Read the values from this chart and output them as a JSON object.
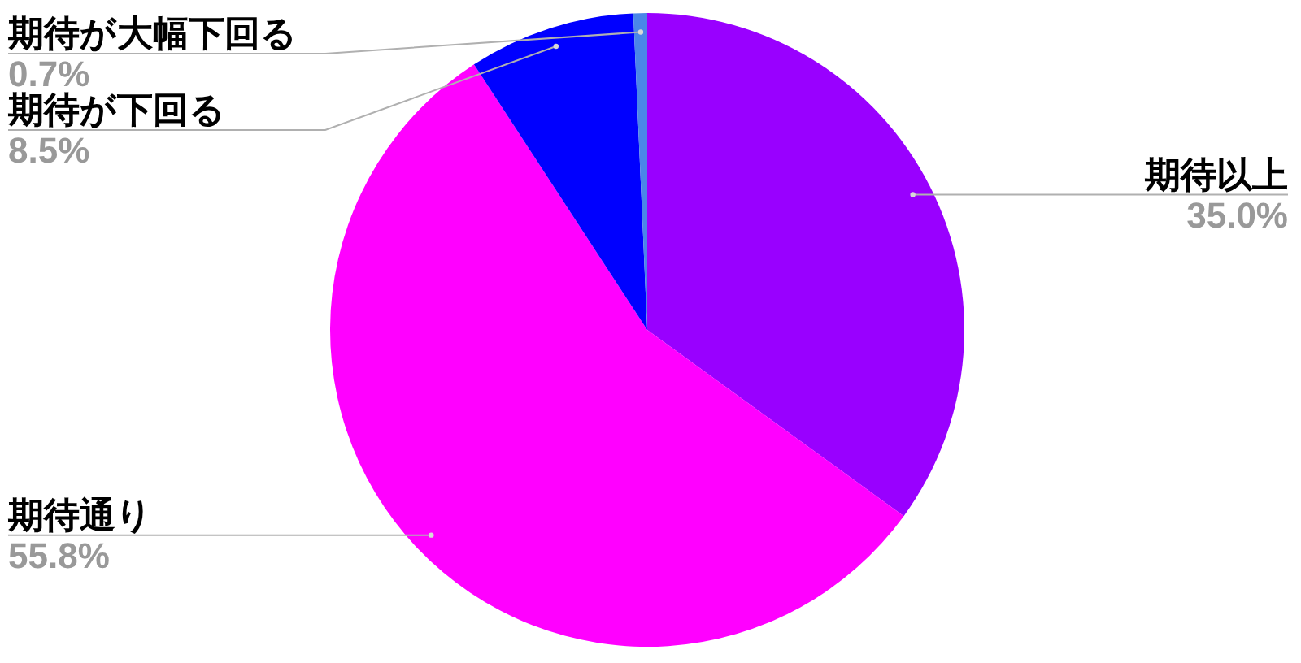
{
  "chart_data": {
    "type": "pie",
    "categories": [
      "期待以上",
      "期待通り",
      "期待が下回る",
      "期待が大幅下回る"
    ],
    "values": [
      35.0,
      55.8,
      8.5,
      0.7
    ],
    "colors": [
      "#9900ff",
      "#ff00ff",
      "#0000ff",
      "#4a86e8"
    ],
    "value_labels": [
      "35.0%",
      "55.8%",
      "8.5%",
      "0.7%"
    ]
  }
}
